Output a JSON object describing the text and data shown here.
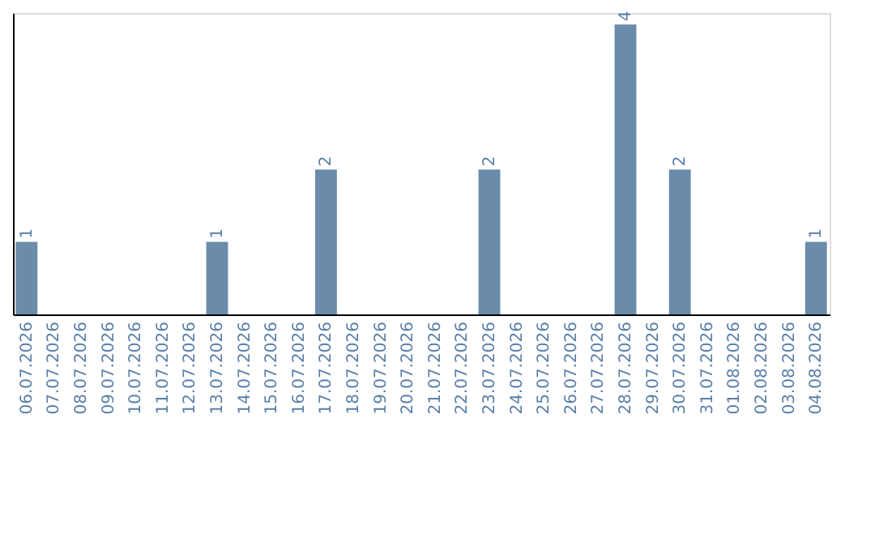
{
  "chart_data": {
    "type": "bar",
    "categories": [
      "06.07.2026",
      "07.07.2026",
      "08.07.2026",
      "09.07.2026",
      "10.07.2026",
      "11.07.2026",
      "12.07.2026",
      "13.07.2026",
      "14.07.2026",
      "15.07.2026",
      "16.07.2026",
      "17.07.2026",
      "18.07.2026",
      "19.07.2026",
      "20.07.2026",
      "21.07.2026",
      "22.07.2026",
      "23.07.2026",
      "24.07.2026",
      "25.07.2026",
      "26.07.2026",
      "27.07.2026",
      "28.07.2026",
      "29.07.2026",
      "30.07.2026",
      "31.07.2026",
      "01.08.2026",
      "02.08.2026",
      "03.08.2026",
      "04.08.2026"
    ],
    "values": [
      1,
      0,
      0,
      0,
      0,
      0,
      0,
      1,
      0,
      0,
      0,
      2,
      0,
      0,
      0,
      0,
      0,
      2,
      0,
      0,
      0,
      0,
      4,
      0,
      2,
      0,
      0,
      0,
      0,
      1
    ],
    "value_labels": [
      "1",
      null,
      null,
      null,
      null,
      null,
      null,
      "1",
      null,
      null,
      null,
      "2",
      null,
      null,
      null,
      null,
      null,
      "2",
      null,
      null,
      null,
      null,
      "4",
      null,
      "2",
      null,
      null,
      null,
      null,
      "1"
    ],
    "color": "#6a8caa",
    "tick_labels": "x",
    "grid": false
  }
}
